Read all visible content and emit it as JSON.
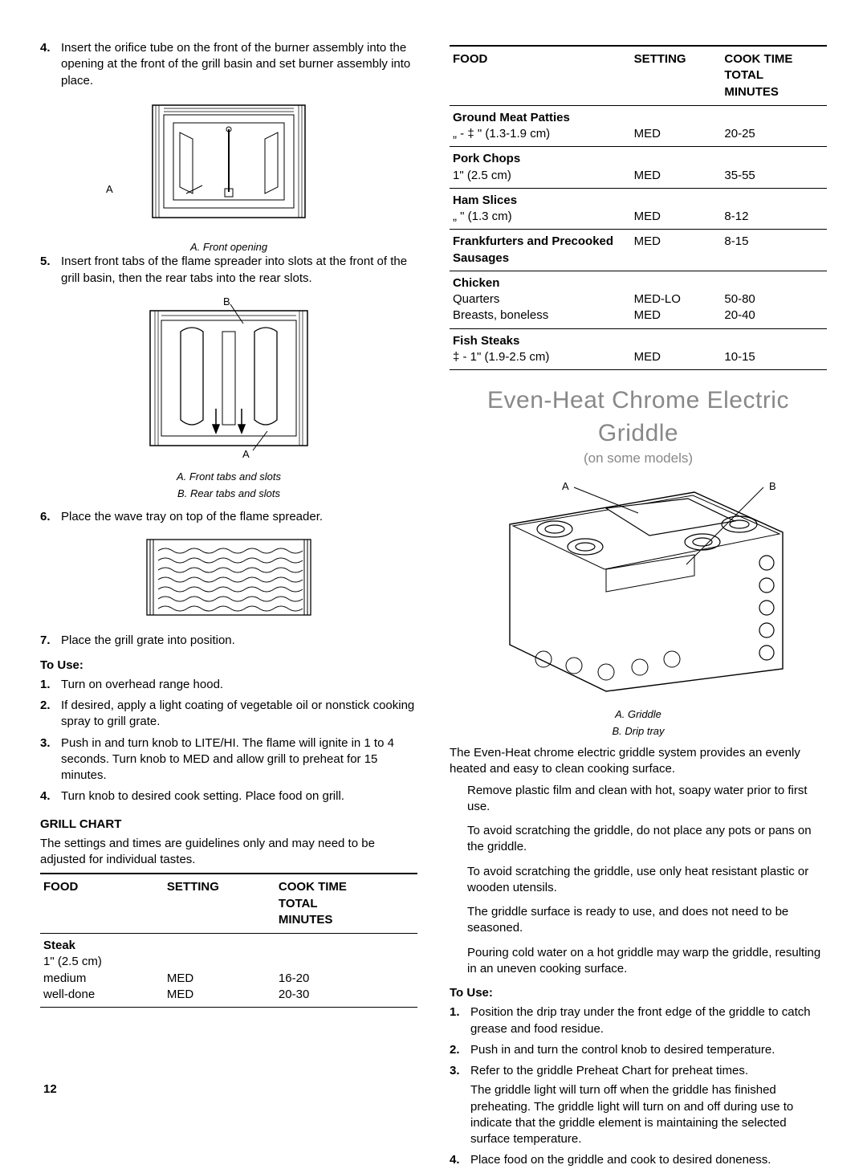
{
  "page_number": "12",
  "left": {
    "steps": [
      {
        "n": "4.",
        "t": "Insert the orifice tube on the front of the burner assembly into the opening at the front of the grill basin and set burner assembly into place."
      },
      {
        "n": "5.",
        "t": "Insert front tabs of the flame spreader into slots at the front of the grill basin, then the rear tabs into the rear slots."
      },
      {
        "n": "6.",
        "t": "Place the wave tray on top of the flame spreader."
      },
      {
        "n": "7.",
        "t": "Place the grill grate into position."
      }
    ],
    "fig1": {
      "A": "A",
      "cap": "A. Front opening"
    },
    "fig2": {
      "A": "A",
      "B": "B",
      "cap1": "A. Front tabs and slots",
      "cap2": "B. Rear tabs and slots"
    },
    "to_use_h": "To Use:",
    "to_use": [
      {
        "n": "1.",
        "t": "Turn on overhead range hood."
      },
      {
        "n": "2.",
        "t": "If desired, apply a light coating of vegetable oil or nonstick cooking spray to grill grate."
      },
      {
        "n": "3.",
        "t": "Push in and turn knob to LITE/HI. The flame will ignite in 1 to 4 seconds. Turn knob to MED and allow grill to preheat for 15 minutes."
      },
      {
        "n": "4.",
        "t": "Turn knob to desired cook setting. Place food on grill."
      }
    ],
    "chart_h": "GRILL CHART",
    "chart_note": "The settings and times are guidelines only and may need to be adjusted for individual tastes.",
    "table_head": {
      "c1": "FOOD",
      "c2": "SETTING",
      "c3a": "COOK TIME",
      "c3b": "TOTAL",
      "c3c": "MINUTES"
    },
    "steak": {
      "head": "Steak",
      "size": "1\" (2.5 cm)",
      "r1a": "medium",
      "r1b": "MED",
      "r1c": "16-20",
      "r2a": "well-done",
      "r2b": "MED",
      "r2c": "20-30"
    }
  },
  "right": {
    "rows": [
      {
        "h": "Ground Meat Patties",
        "a": "„  - ‡ \" (1.3-1.9 cm)",
        "b": "MED",
        "c": "20-25"
      },
      {
        "h": "Pork Chops",
        "a": "1\" (2.5 cm)",
        "b": "MED",
        "c": "35-55"
      },
      {
        "h": "Ham Slices",
        "a": "„  \" (1.3 cm)",
        "b": "MED",
        "c": "8-12"
      },
      {
        "h": "Frankfurters and Precooked Sausages",
        "a": "",
        "b": "MED",
        "c": "8-15",
        "single": true
      },
      {
        "h": "Chicken",
        "a": "Quarters",
        "b": "MED-LO",
        "c": "50-80",
        "a2": "Breasts, boneless",
        "b2": "MED",
        "c2": "20-40"
      },
      {
        "h": "Fish Steaks",
        "a": "‡  - 1\" (1.9-2.5 cm)",
        "b": "MED",
        "c": "10-15"
      }
    ],
    "h2a": "Even-Heat  Chrome Electric Griddle",
    "h2b": "(on some models)",
    "fig": {
      "A": "A",
      "B": "B",
      "cap1": "A. Griddle",
      "cap2": "B. Drip tray"
    },
    "intro": "The Even-Heat  chrome electric griddle system provides an evenly heated and easy to clean cooking surface.",
    "bullets": [
      "Remove plastic film and clean with hot, soapy water prior to first use.",
      "To avoid scratching the griddle, do not place any pots or pans on the griddle.",
      "To avoid scratching the griddle, use only heat resistant plastic or wooden utensils.",
      "The griddle surface is ready to use, and does not need to be seasoned.",
      "Pouring cold water on a hot griddle may warp the griddle, resulting in an uneven cooking surface."
    ],
    "to_use_h": "To Use:",
    "to_use": [
      {
        "n": "1.",
        "t": "Position the drip tray under the front edge of the griddle to catch grease and food residue."
      },
      {
        "n": "2.",
        "t": "Push in and turn the control knob to desired temperature."
      },
      {
        "n": "3.",
        "t": "Refer to the griddle Preheat Chart for preheat times.",
        "extra": "The griddle light will turn off when the griddle has finished preheating. The griddle light will turn on and off during use to indicate that the griddle element is maintaining the selected surface temperature."
      },
      {
        "n": "4.",
        "t": "Place food on the griddle and cook to desired doneness."
      }
    ]
  }
}
